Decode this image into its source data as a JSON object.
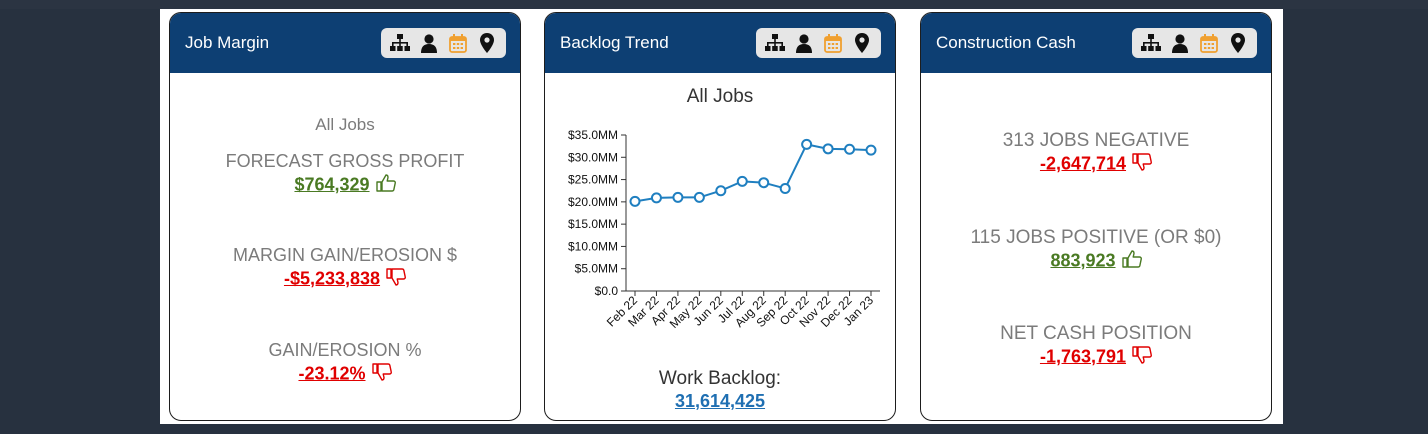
{
  "colors": {
    "header_bg": "#0d3f73",
    "positive": "#4a7a23",
    "negative": "#e00000",
    "link_blue": "#1f6fb2",
    "calendar_icon": "#f0a030",
    "line": "#1f7fc0"
  },
  "toolbar_icons": [
    "org-chart-icon",
    "person-icon",
    "calendar-icon",
    "map-pin-icon"
  ],
  "job_margin": {
    "title": "Job Margin",
    "subtitle": "All Jobs",
    "forecast_label": "FORECAST GROSS PROFIT",
    "forecast_value": "$764,329",
    "forecast_thumb": "thumbs-up-icon",
    "gain_label": "MARGIN GAIN/EROSION $",
    "gain_value": "-$5,233,838",
    "gain_thumb": "thumbs-down-icon",
    "pct_label": "GAIN/EROSION %",
    "pct_value": "-23.12%",
    "pct_thumb": "thumbs-down-icon"
  },
  "backlog": {
    "title": "Backlog Trend",
    "footer_label": "Work Backlog:",
    "footer_value": "31,614,425"
  },
  "chart_data": {
    "type": "line",
    "title": "All Jobs",
    "categories": [
      "Feb 22",
      "Mar 22",
      "Apr 22",
      "May 22",
      "Jun 22",
      "Jul 22",
      "Aug 22",
      "Sep 22",
      "Oct 22",
      "Nov 22",
      "Dec 22",
      "Jan 23"
    ],
    "values": [
      20.1,
      20.9,
      21.0,
      21.0,
      22.5,
      24.6,
      24.3,
      23.0,
      32.9,
      31.9,
      31.8,
      31.6
    ],
    "y_unit": "MM",
    "y_ticks": [
      "$35.0MM",
      "$30.0MM",
      "$25.0MM",
      "$20.0MM",
      "$15.0MM",
      "$10.0MM",
      "$5.0MM",
      "$0.0"
    ],
    "ylim": [
      0,
      35
    ],
    "grid": false,
    "legend": "none"
  },
  "cash": {
    "title": "Construction Cash",
    "neg_label": "313 JOBS NEGATIVE",
    "neg_value": "-2,647,714",
    "neg_thumb": "thumbs-down-icon",
    "pos_label": "115 JOBS POSITIVE (OR $0)",
    "pos_value": "883,923",
    "pos_thumb": "thumbs-up-icon",
    "net_label": "NET CASH POSITION",
    "net_value": "-1,763,791",
    "net_thumb": "thumbs-down-icon"
  }
}
